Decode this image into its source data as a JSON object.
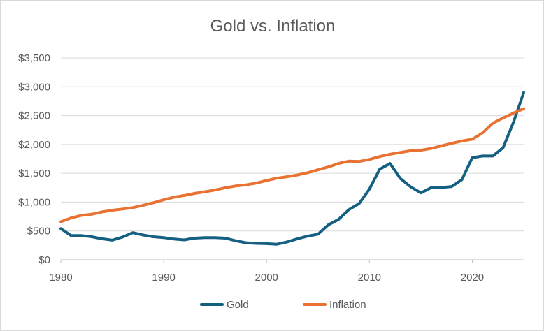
{
  "chart_data": {
    "type": "line",
    "title": "Gold vs. Inflation",
    "xlabel": "",
    "ylabel": "",
    "xlim": [
      1980,
      2025
    ],
    "ylim": [
      0,
      3500
    ],
    "y_ticks": [
      0,
      500,
      1000,
      1500,
      2000,
      2500,
      3000,
      3500
    ],
    "y_tick_labels": [
      "$0",
      "$500",
      "$1,000",
      "$1,500",
      "$2,000",
      "$2,500",
      "$3,000",
      "$3,500"
    ],
    "x_ticks": [
      1980,
      1990,
      2000,
      2010,
      2020
    ],
    "x_tick_labels": [
      "1980",
      "1990",
      "2000",
      "2010",
      "2020"
    ],
    "grid": "horizontal",
    "legend_position": "bottom",
    "series": [
      {
        "name": "Gold",
        "color": "#156082",
        "x": [
          1980,
          1981,
          1982,
          1983,
          1984,
          1985,
          1986,
          1987,
          1988,
          1989,
          1990,
          1991,
          1992,
          1993,
          1994,
          1995,
          1996,
          1997,
          1998,
          1999,
          2000,
          2001,
          2002,
          2003,
          2004,
          2005,
          2006,
          2007,
          2008,
          2009,
          2010,
          2011,
          2012,
          2013,
          2014,
          2015,
          2016,
          2017,
          2018,
          2019,
          2020,
          2021,
          2022,
          2023,
          2024,
          2025
        ],
        "values": [
          540,
          420,
          420,
          400,
          365,
          340,
          395,
          470,
          430,
          400,
          385,
          360,
          345,
          375,
          385,
          385,
          375,
          330,
          295,
          285,
          280,
          270,
          310,
          365,
          410,
          445,
          605,
          700,
          870,
          975,
          1225,
          1570,
          1670,
          1410,
          1265,
          1160,
          1250,
          1255,
          1270,
          1390,
          1770,
          1800,
          1800,
          1945,
          2385,
          2900
        ]
      },
      {
        "name": "Inflation",
        "color": "#E97132",
        "x": [
          1980,
          1981,
          1982,
          1983,
          1984,
          1985,
          1986,
          1987,
          1988,
          1989,
          1990,
          1991,
          1992,
          1993,
          1994,
          1995,
          1996,
          1997,
          1998,
          1999,
          2000,
          2001,
          2002,
          2003,
          2004,
          2005,
          2006,
          2007,
          2008,
          2009,
          2010,
          2011,
          2012,
          2013,
          2014,
          2015,
          2016,
          2017,
          2018,
          2019,
          2020,
          2021,
          2022,
          2023,
          2024,
          2025
        ],
        "values": [
          660,
          725,
          770,
          790,
          830,
          860,
          880,
          905,
          945,
          990,
          1040,
          1085,
          1115,
          1150,
          1180,
          1210,
          1250,
          1280,
          1300,
          1330,
          1375,
          1415,
          1440,
          1470,
          1510,
          1560,
          1610,
          1670,
          1710,
          1705,
          1740,
          1790,
          1830,
          1860,
          1890,
          1900,
          1930,
          1975,
          2020,
          2060,
          2090,
          2200,
          2370,
          2460,
          2545,
          2620
        ]
      }
    ]
  }
}
